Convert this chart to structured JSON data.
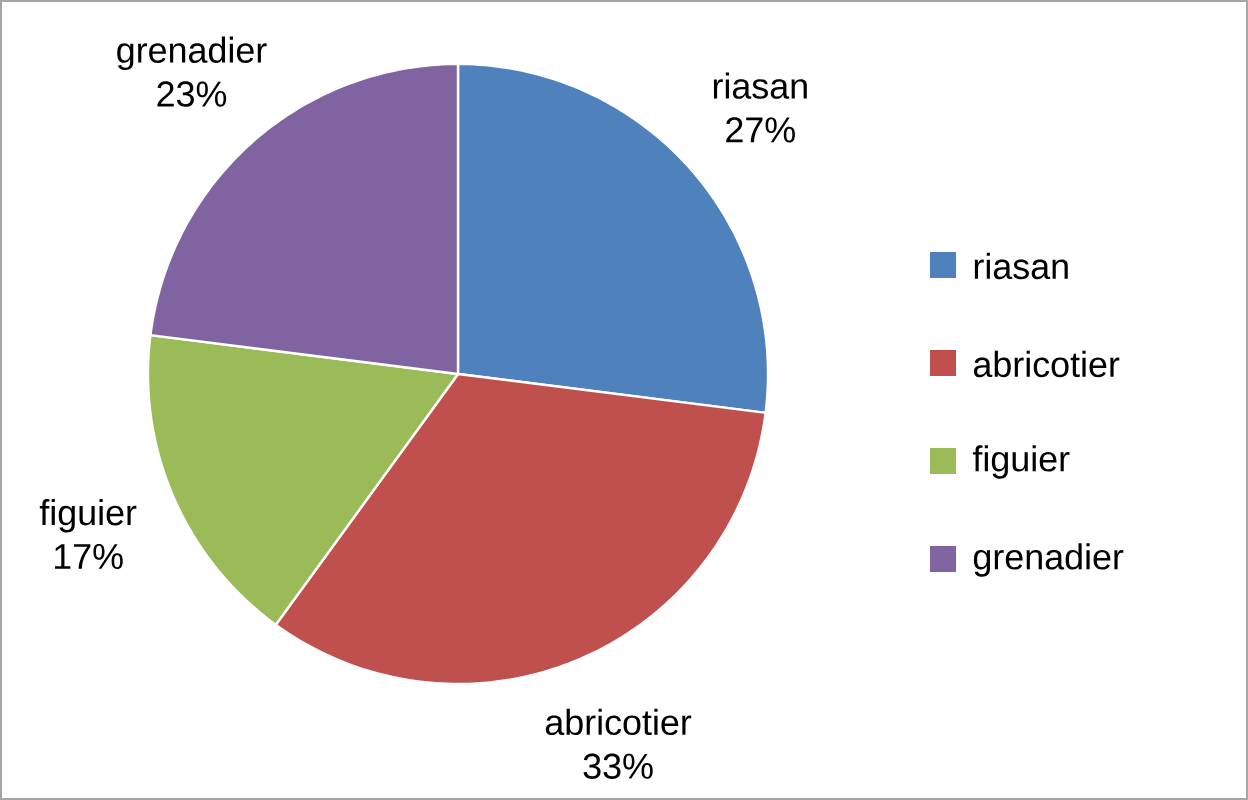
{
  "chart_data": {
    "type": "pie",
    "categories": [
      "riasan",
      "abricotier",
      "figuier",
      "grenadier"
    ],
    "values": [
      27,
      33,
      17,
      23
    ],
    "value_labels": [
      "27%",
      "33%",
      "17%",
      "23%"
    ],
    "colors": [
      "#4f81bd",
      "#c0504d",
      "#9bbb59",
      "#8064a2"
    ],
    "legend": "right"
  }
}
